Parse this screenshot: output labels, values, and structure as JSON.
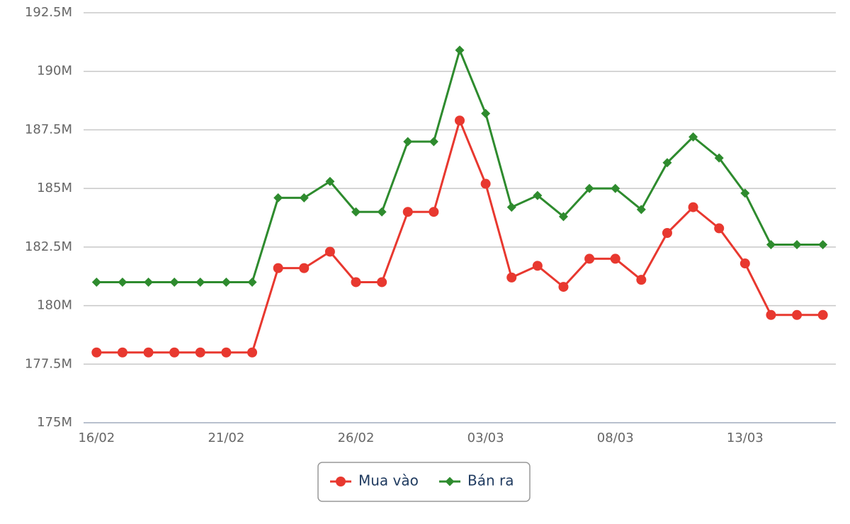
{
  "chart_data": {
    "type": "line",
    "categories": [
      "16/02",
      null,
      null,
      null,
      null,
      "21/02",
      null,
      null,
      null,
      null,
      "26/02",
      null,
      null,
      null,
      null,
      "03/03",
      null,
      null,
      null,
      null,
      "08/03",
      null,
      null,
      null,
      null,
      "13/03",
      null,
      null,
      null
    ],
    "series": [
      {
        "name": "Mua vào",
        "color": "#e8382f",
        "marker": "circle",
        "values": [
          178,
          178,
          178,
          178,
          178,
          178,
          178,
          181.6,
          181.6,
          182.3,
          181,
          181,
          184,
          184,
          187.9,
          185.2,
          181.2,
          181.7,
          180.8,
          182,
          182,
          181.1,
          183.1,
          184.2,
          183.3,
          181.8,
          179.6,
          179.6,
          179.6
        ]
      },
      {
        "name": "Bán ra",
        "color": "#2e8b2e",
        "marker": "diamond",
        "values": [
          181,
          181,
          181,
          181,
          181,
          181,
          181,
          184.6,
          184.6,
          185.3,
          184,
          184,
          187,
          187,
          190.9,
          188.2,
          184.2,
          184.7,
          183.8,
          185,
          185,
          184.1,
          186.1,
          187.2,
          186.3,
          184.8,
          182.6,
          182.6,
          182.6
        ]
      }
    ],
    "ylim": [
      175,
      192.5
    ],
    "yticks": [
      {
        "value": 175,
        "label": "175M"
      },
      {
        "value": 177.5,
        "label": "177.5M"
      },
      {
        "value": 180,
        "label": "180M"
      },
      {
        "value": 182.5,
        "label": "182.5M"
      },
      {
        "value": 185,
        "label": "185M"
      },
      {
        "value": 187.5,
        "label": "187.5M"
      },
      {
        "value": 190,
        "label": "190M"
      },
      {
        "value": 192.5,
        "label": "192.5M"
      }
    ],
    "grid": true
  }
}
